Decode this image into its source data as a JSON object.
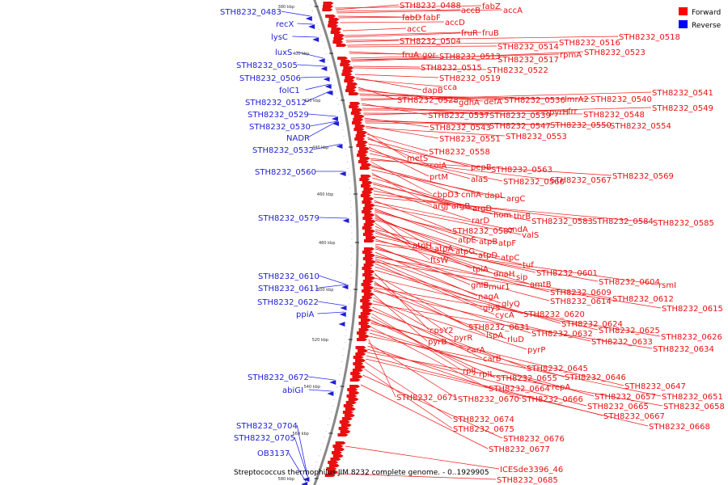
{
  "caption": "Streptococcus thermophilus JIM 8232 complete genome. - 0..1929905",
  "legend": [
    {
      "label": "Forward",
      "color": "#ff0000"
    },
    {
      "label": "Reverse",
      "color": "#0000ff"
    }
  ],
  "ticks": [
    "380 kbp",
    "400 kbp",
    "420 kbp",
    "440 kbp",
    "460 kbp",
    "480 kbp",
    "500 kbp",
    "520 kbp",
    "540 kbp",
    "560 kbp",
    "580 kbp"
  ],
  "reverse_labels": [
    "STH8232_0483",
    "recX",
    "lysC",
    "luxS",
    "STH8232_0505",
    "STH8232_0506",
    "folC1",
    "STH8232_0512",
    "STH8232_0529",
    "STH8232_0530",
    "NADR",
    "STH8232_0532",
    "STH8232_0560",
    "STH8232_0579",
    "STH8232_0610",
    "STH8232_0611",
    "STH8232_0622",
    "ppiA",
    "STH8232_0672",
    "abiGI",
    "STH8232_0704",
    "STH8232_0705",
    "OB3137"
  ],
  "forward_labels": [
    "STH8232_0488",
    "accB",
    "fabZ",
    "accA",
    "fabD",
    "fabF",
    "accD",
    "accC",
    "fruR",
    "fruB",
    "STH8232_0504",
    "STH8232_0514",
    "STH8232_0516",
    "STH8232_0518",
    "fruA",
    "gor",
    "STH8232_0513",
    "STH8232_0517",
    "rpmA",
    "STH8232_0523",
    "STH8232_0515",
    "STH8232_0522",
    "STH8232_0519",
    "dapB",
    "cca",
    "STH8232_0528",
    "gdhA",
    "defA",
    "STH8232_0536",
    "lmrA2",
    "STH8232_0540",
    "STH8232_0541",
    "STH8232_0537",
    "STH8232_0539",
    "pyrH",
    "frr",
    "STH8232_0548",
    "STH8232_0549",
    "STH8232_0543",
    "STH8232_0547",
    "STH8232_0550",
    "STH8232_0554",
    "STH8232_0551",
    "STH8232_0553",
    "metS",
    "STH8232_0558",
    "coiA",
    "pepB",
    "STH8232_0563",
    "prtM",
    "alaS",
    "STH8232_0566",
    "STH8232_0567",
    "STH8232_0569",
    "cbpD3",
    "cnhA",
    "dapL",
    "argC",
    "argJ",
    "argB",
    "argD",
    "hom",
    "thrB",
    "rarD",
    "STH8232_0583",
    "STH8232_0584",
    "STH8232_0585",
    "STH8232_0587",
    "endA",
    "valS",
    "atpE",
    "atpB",
    "atpF",
    "atpH",
    "atpA",
    "atpG",
    "atpD",
    "atpC",
    "ftsW",
    "tpiA",
    "tuf",
    "dnaH",
    "sip",
    "STH8232_0601",
    "amtB",
    "STH8232_0604",
    "rsmI",
    "gnlB",
    "mur1",
    "STH8232_0609",
    "nagA",
    "STH8232_0614",
    "STH8232_0612",
    "glyQ",
    "glyS",
    "STH8232_0615",
    "cycA",
    "STH8232_0620",
    "STH8232_0624",
    "cpsY2",
    "STH8232_0631",
    "STH8232_0625",
    "pyrR",
    "lspA",
    "STH8232_0632",
    "STH8232_0626",
    "rluD",
    "STH8232_0633",
    "pyrB",
    "carA",
    "pyrP",
    "STH8232_0634",
    "carB",
    "STH8232_0645",
    "rpIJ",
    "rpIL",
    "STH8232_0655",
    "STH8232_0646",
    "STH8232_0647",
    "STH8232_0664",
    "repA",
    "STH8232_0657",
    "STH8232_0651",
    "STH8232_0671",
    "STH8232_0670",
    "STH8232_0666",
    "STH8232_0665",
    "STH8232_0658",
    "STH8232_0667",
    "STH8232_0668",
    "STH8232_0674",
    "STH8232_0675",
    "STH8232_0676",
    "STH8232_0677",
    "ICESde3396_46",
    "STH8232_0685"
  ]
}
